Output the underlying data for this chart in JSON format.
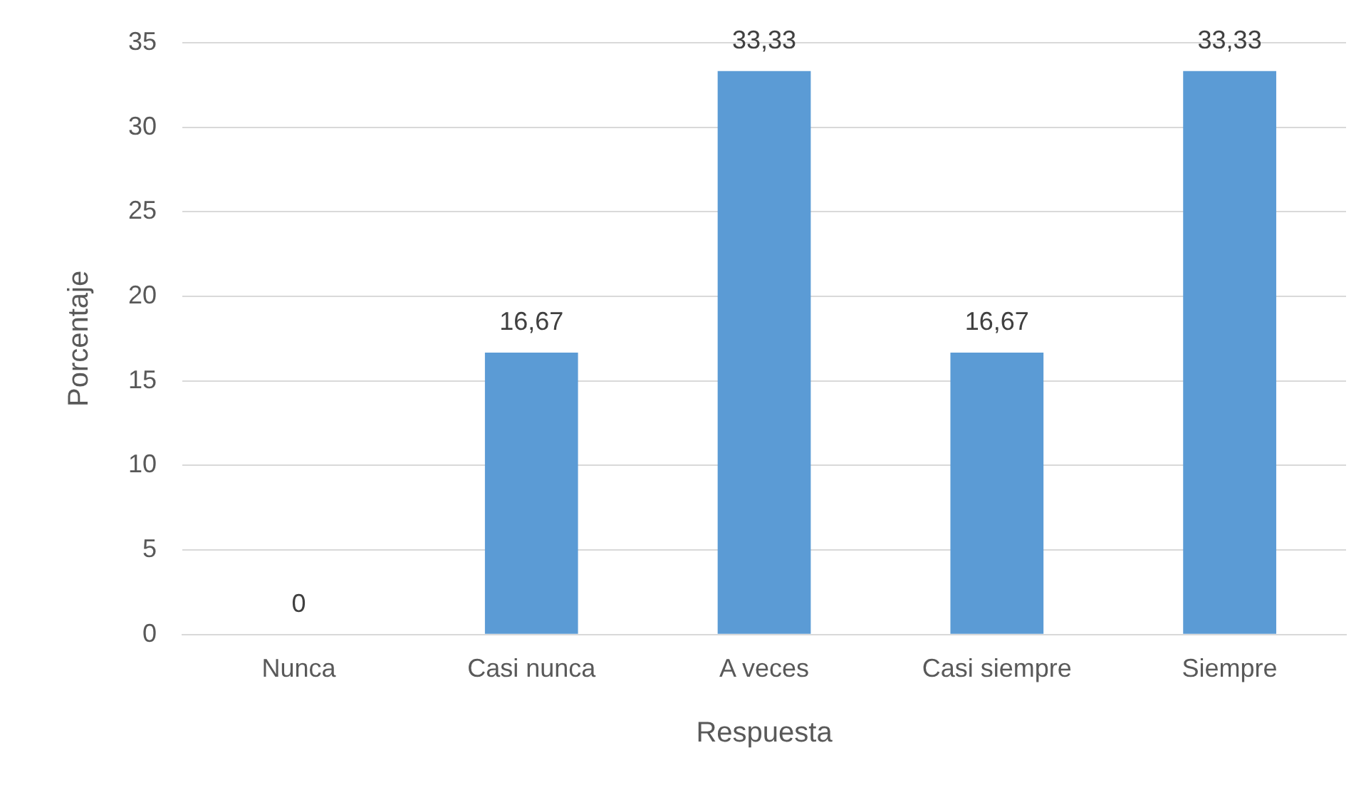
{
  "chart_data": {
    "type": "bar",
    "xlabel": "Respuesta",
    "ylabel": "Porcentaje",
    "categories": [
      "Nunca",
      "Casi nunca",
      "A veces",
      "Casi siempre",
      "Siempre"
    ],
    "values": [
      0,
      16.67,
      33.33,
      16.67,
      33.33
    ],
    "value_labels": [
      "0",
      "16,67",
      "33,33",
      "16,67",
      "33,33"
    ],
    "color": "#5b9bd5",
    "ylim": [
      0,
      35
    ],
    "yticks": [
      0,
      5,
      10,
      15,
      20,
      25,
      30,
      35
    ],
    "grid": "y",
    "legend": false
  }
}
